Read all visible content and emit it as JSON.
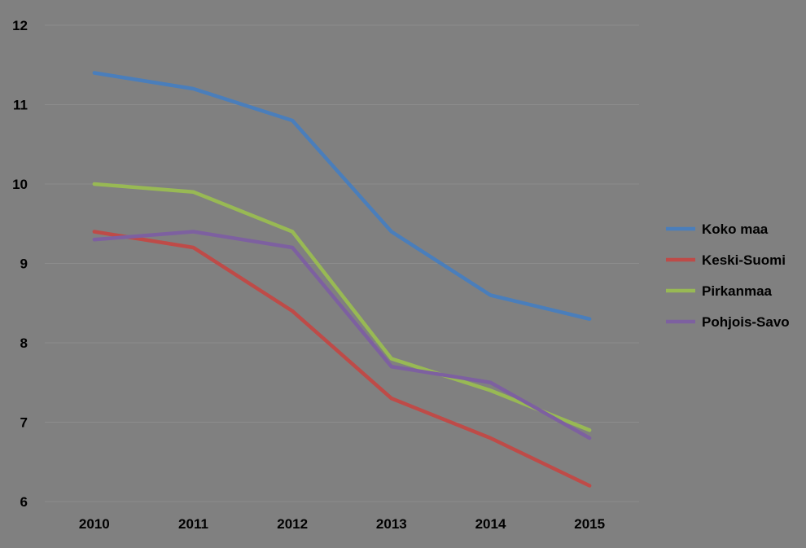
{
  "chart_data": {
    "type": "line",
    "categories": [
      "2010",
      "2011",
      "2012",
      "2013",
      "2014",
      "2015"
    ],
    "y_ticks": [
      "6",
      "7",
      "8",
      "9",
      "10",
      "11",
      "12"
    ],
    "ylim": [
      6,
      12
    ],
    "grid": true,
    "legend_position": "right",
    "background_color": "#808080",
    "gridline_color": "#8c8c8c",
    "series": [
      {
        "name": "Koko maa",
        "color": "#4a7ebb",
        "values": [
          11.4,
          11.2,
          10.8,
          9.4,
          8.6,
          8.3
        ]
      },
      {
        "name": "Keski-Suomi",
        "color": "#be4b48",
        "values": [
          9.4,
          9.2,
          8.4,
          7.3,
          6.8,
          6.2
        ]
      },
      {
        "name": "Pirkanmaa",
        "color": "#98b954",
        "values": [
          10.0,
          9.9,
          9.4,
          7.8,
          7.4,
          6.9
        ]
      },
      {
        "name": "Pohjois-Savo",
        "color": "#7d60a0",
        "values": [
          9.3,
          9.4,
          9.2,
          7.7,
          7.5,
          6.8
        ]
      }
    ]
  }
}
